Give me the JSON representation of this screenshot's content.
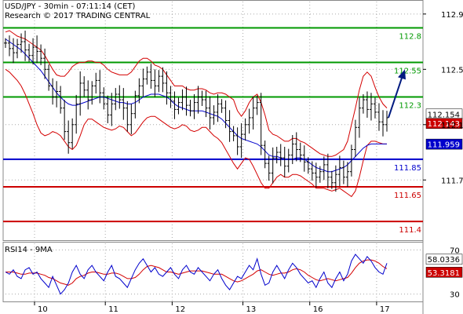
{
  "header": {
    "line1": "USD/JPY - 30min - 07:11:14 (CET)",
    "line2": "Research © 2017 TRADING CENTRAL"
  },
  "rsi_panel": {
    "title": "RSI14 - 9MA"
  },
  "colors": {
    "price": "#000000",
    "bollinger": "#d40000",
    "ma": "#0000cc",
    "resistance": "#009900",
    "support_blue": "#0000cc",
    "support_red": "#cc0000",
    "arrow": "#001a80",
    "grid": "#aaaaaa"
  },
  "chart_data": [
    {
      "type": "line",
      "name": "price",
      "x_ticks": [
        "10",
        "11",
        "12",
        "13",
        "16",
        "17"
      ],
      "y_ticks": [
        111.7,
        112.1,
        112.5,
        112.9
      ],
      "ylim": [
        111.27,
        112.99
      ],
      "levels": [
        {
          "label": "112.8",
          "value": 112.8,
          "color": "#009900",
          "style": "resistance"
        },
        {
          "label": "112.55",
          "value": 112.55,
          "color": "#009900",
          "style": "resistance"
        },
        {
          "label": "112.3",
          "value": 112.3,
          "color": "#009900",
          "style": "resistance"
        },
        {
          "label": "111.85",
          "value": 111.85,
          "color": "#0000cc",
          "style": "support"
        },
        {
          "label": "111.65",
          "value": 111.65,
          "color": "#cc0000",
          "style": "support"
        },
        {
          "label": "111.4",
          "value": 111.4,
          "color": "#cc0000",
          "style": "support"
        }
      ],
      "price_tags": [
        {
          "label": "112.154",
          "value": 112.154,
          "bg": "#ffffff",
          "fg": "#000000"
        },
        {
          "label": "112.143",
          "value": 112.143,
          "bg": "#cc0000",
          "fg": "#ffffff"
        },
        {
          "label": "111.959",
          "value": 111.959,
          "bg": "#0000cc",
          "fg": "#ffffff"
        }
      ],
      "close": [
        112.69,
        112.65,
        112.62,
        112.68,
        112.7,
        112.64,
        112.6,
        112.66,
        112.63,
        112.58,
        112.5,
        112.38,
        112.3,
        112.34,
        112.22,
        112.05,
        111.97,
        112.1,
        112.25,
        112.4,
        112.35,
        112.28,
        112.38,
        112.42,
        112.33,
        112.25,
        112.17,
        112.25,
        112.32,
        112.28,
        112.22,
        112.1,
        112.18,
        112.31,
        112.38,
        112.43,
        112.48,
        112.42,
        112.38,
        112.45,
        112.4,
        112.33,
        112.27,
        112.21,
        112.26,
        112.3,
        112.24,
        112.2,
        112.26,
        112.3,
        112.28,
        112.22,
        112.15,
        112.19,
        112.25,
        112.22,
        112.13,
        112.05,
        112.02,
        111.94,
        112.03,
        112.1,
        112.15,
        112.22,
        112.26,
        111.95,
        111.82,
        111.75,
        111.86,
        111.9,
        111.86,
        111.8,
        111.88,
        111.96,
        111.92,
        111.88,
        111.83,
        111.78,
        111.75,
        111.72,
        111.76,
        111.81,
        111.72,
        111.68,
        111.74,
        111.79,
        111.72,
        111.76,
        111.92,
        112.08,
        112.22,
        112.28,
        112.21,
        112.25,
        112.19,
        112.12,
        112.1,
        112.15
      ],
      "bb_upper": [
        112.77,
        112.78,
        112.76,
        112.74,
        112.73,
        112.72,
        112.7,
        112.68,
        112.66,
        112.64,
        112.6,
        112.55,
        112.5,
        112.46,
        112.45,
        112.45,
        112.48,
        112.52,
        112.54,
        112.55,
        112.55,
        112.56,
        112.56,
        112.55,
        112.55,
        112.53,
        112.5,
        112.48,
        112.47,
        112.46,
        112.46,
        112.46,
        112.48,
        112.52,
        112.56,
        112.58,
        112.58,
        112.56,
        112.53,
        112.52,
        112.5,
        112.46,
        112.42,
        112.38,
        112.38,
        112.38,
        112.36,
        112.35,
        112.35,
        112.36,
        112.36,
        112.35,
        112.33,
        112.32,
        112.33,
        112.33,
        112.32,
        112.3,
        112.28,
        112.2,
        112.16,
        112.2,
        112.26,
        112.3,
        112.32,
        112.26,
        112.17,
        112.06,
        112.03,
        112.02,
        112.0,
        111.98,
        111.98,
        112.0,
        112.0,
        111.98,
        111.97,
        111.95,
        111.93,
        111.91,
        111.89,
        111.88,
        111.87,
        111.87,
        111.88,
        111.9,
        111.92,
        111.98,
        112.1,
        112.22,
        112.35,
        112.45,
        112.48,
        112.45,
        112.37,
        112.3,
        112.25,
        112.22
      ],
      "bb_lower": [
        112.5,
        112.48,
        112.45,
        112.42,
        112.38,
        112.32,
        112.25,
        112.18,
        112.1,
        112.04,
        112.02,
        112.03,
        112.05,
        112.04,
        112.02,
        111.98,
        111.94,
        111.92,
        111.95,
        112.02,
        112.1,
        112.14,
        112.14,
        112.12,
        112.1,
        112.08,
        112.07,
        112.06,
        112.07,
        112.09,
        112.08,
        112.05,
        112.02,
        112.04,
        112.08,
        112.12,
        112.15,
        112.16,
        112.16,
        112.14,
        112.12,
        112.1,
        112.08,
        112.07,
        112.08,
        112.1,
        112.09,
        112.06,
        112.05,
        112.06,
        112.08,
        112.08,
        112.05,
        112.02,
        112.0,
        111.97,
        111.92,
        111.87,
        111.82,
        111.78,
        111.82,
        111.86,
        111.85,
        111.8,
        111.74,
        111.68,
        111.64,
        111.64,
        111.68,
        111.72,
        111.74,
        111.72,
        111.72,
        111.74,
        111.74,
        111.73,
        111.71,
        111.69,
        111.67,
        111.64,
        111.64,
        111.64,
        111.63,
        111.62,
        111.63,
        111.64,
        111.62,
        111.6,
        111.58,
        111.62,
        111.72,
        111.84,
        111.95,
        111.98,
        111.98,
        111.97,
        111.96,
        111.96
      ],
      "ma": [
        112.72,
        112.7,
        112.68,
        112.66,
        112.64,
        112.61,
        112.58,
        112.55,
        112.52,
        112.49,
        112.45,
        112.41,
        112.37,
        112.33,
        112.3,
        112.27,
        112.25,
        112.24,
        112.24,
        112.25,
        112.26,
        112.27,
        112.28,
        112.29,
        112.3,
        112.3,
        112.29,
        112.28,
        112.27,
        112.26,
        112.26,
        112.25,
        112.25,
        112.26,
        112.28,
        112.3,
        112.31,
        112.32,
        112.32,
        112.32,
        112.31,
        112.3,
        112.28,
        112.25,
        112.23,
        112.22,
        112.21,
        112.2,
        112.2,
        112.2,
        112.2,
        112.19,
        112.18,
        112.17,
        112.16,
        112.14,
        112.11,
        112.08,
        112.05,
        112.02,
        112.0,
        111.99,
        111.98,
        111.97,
        111.96,
        111.94,
        111.91,
        111.88,
        111.87,
        111.87,
        111.86,
        111.85,
        111.85,
        111.85,
        111.86,
        111.86,
        111.85,
        111.83,
        111.81,
        111.79,
        111.78,
        111.77,
        111.76,
        111.76,
        111.77,
        111.78,
        111.79,
        111.81,
        111.84,
        111.87,
        111.9,
        111.93,
        111.95,
        111.96,
        111.96,
        111.96,
        111.96,
        111.96
      ],
      "forecast_arrow": {
        "from": 112.15,
        "to": 112.5
      }
    },
    {
      "type": "line",
      "name": "rsi",
      "y_ticks": [
        30,
        70
      ],
      "ylim": [
        24,
        76
      ],
      "value_tags": [
        {
          "label": "58.0336",
          "value": 58.0336,
          "bg": "#ffffff",
          "fg": "#000000"
        },
        {
          "label": "53.3181",
          "value": 53.3181,
          "bg": "#cc0000",
          "fg": "#ffffff"
        }
      ],
      "rsi": [
        50,
        48,
        52,
        46,
        44,
        52,
        54,
        48,
        50,
        44,
        40,
        36,
        46,
        38,
        30,
        34,
        40,
        50,
        56,
        48,
        44,
        52,
        56,
        50,
        46,
        42,
        50,
        56,
        46,
        44,
        40,
        36,
        44,
        52,
        58,
        62,
        56,
        50,
        54,
        48,
        46,
        50,
        54,
        48,
        44,
        52,
        56,
        50,
        48,
        54,
        50,
        46,
        42,
        48,
        52,
        44,
        38,
        34,
        40,
        46,
        44,
        50,
        56,
        52,
        62,
        48,
        38,
        40,
        50,
        56,
        50,
        44,
        52,
        58,
        54,
        48,
        44,
        40,
        42,
        36,
        44,
        50,
        40,
        36,
        44,
        50,
        42,
        48,
        60,
        66,
        62,
        58,
        64,
        60,
        54,
        50,
        48,
        58
      ],
      "ma9": [
        50,
        50,
        50,
        49,
        48,
        48,
        49,
        49,
        49,
        48,
        47,
        45,
        44,
        42,
        40,
        39,
        38,
        40,
        44,
        46,
        47,
        49,
        50,
        50,
        49,
        48,
        48,
        49,
        49,
        48,
        46,
        44,
        44,
        45,
        48,
        52,
        55,
        56,
        55,
        54,
        52,
        50,
        50,
        49,
        48,
        49,
        50,
        51,
        51,
        51,
        51,
        50,
        49,
        48,
        48,
        48,
        46,
        44,
        42,
        41,
        42,
        44,
        46,
        48,
        51,
        52,
        50,
        48,
        47,
        48,
        49,
        49,
        50,
        52,
        53,
        52,
        50,
        47,
        45,
        43,
        42,
        43,
        44,
        43,
        42,
        43,
        44,
        45,
        49,
        54,
        58,
        60,
        61,
        61,
        60,
        58,
        55,
        53
      ]
    }
  ]
}
